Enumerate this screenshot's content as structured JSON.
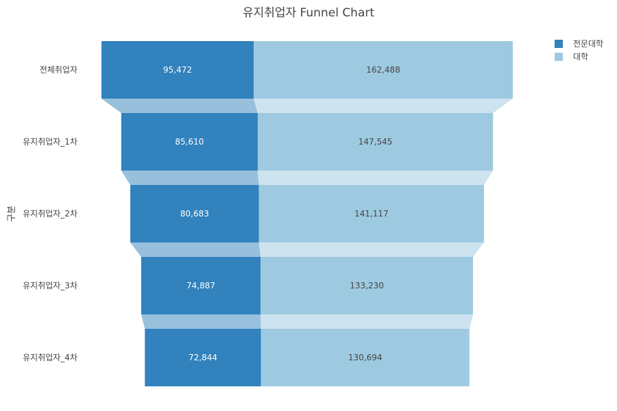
{
  "chart_data": {
    "type": "funnel",
    "title": "유지취업자 Funnel Chart",
    "ylabel": "구분",
    "categories": [
      "전체취업자",
      "유지취업자_1차",
      "유지취업자_2차",
      "유지취업자_3차",
      "유지취업자_4차"
    ],
    "series": [
      {
        "name": "전문대학",
        "color": "#3182bd",
        "connector_color": "#98c0dd",
        "text_color": "#ffffff",
        "values": [
          95472,
          85610,
          80683,
          74887,
          72844
        ]
      },
      {
        "name": "대학",
        "color": "#9ecae1",
        "connector_color": "#cde3ef",
        "text_color": "#444444",
        "values": [
          162488,
          147545,
          141117,
          133230,
          130694
        ]
      }
    ],
    "value_labels": [
      [
        "95,472",
        "85,610",
        "80,683",
        "74,887",
        "72,844"
      ],
      [
        "162,488",
        "147,545",
        "141,117",
        "133,230",
        "130,694"
      ]
    ],
    "legend_position": "top-right"
  }
}
